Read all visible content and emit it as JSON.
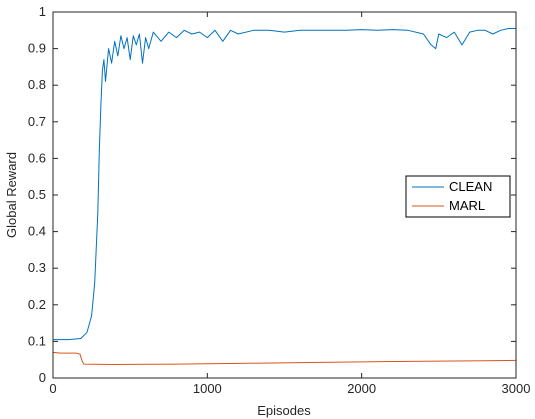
{
  "chart_data": {
    "type": "line",
    "title": "",
    "xlabel": "Episodes",
    "ylabel": "Global Reward",
    "xlim": [
      0,
      3000
    ],
    "ylim": [
      0,
      1
    ],
    "x_ticks": [
      0,
      1000,
      2000,
      3000
    ],
    "y_ticks": [
      0,
      0.1,
      0.2,
      0.3,
      0.4,
      0.5,
      0.6,
      0.7,
      0.8,
      0.9,
      1
    ],
    "x_tick_labels": [
      "0",
      "1000",
      "2000",
      "3000"
    ],
    "y_tick_labels": [
      "0",
      "0.1",
      "0.2",
      "0.3",
      "0.4",
      "0.5",
      "0.6",
      "0.7",
      "0.8",
      "0.9",
      "1"
    ],
    "legend_position": "right",
    "grid": false,
    "series": [
      {
        "name": "CLEAN",
        "color": "#0072BD",
        "x": [
          0,
          100,
          180,
          220,
          250,
          270,
          290,
          300,
          310,
          320,
          330,
          340,
          360,
          380,
          400,
          420,
          440,
          460,
          480,
          500,
          520,
          540,
          560,
          580,
          600,
          620,
          650,
          700,
          750,
          800,
          850,
          900,
          950,
          1000,
          1050,
          1100,
          1150,
          1200,
          1300,
          1400,
          1500,
          1600,
          1700,
          1800,
          1900,
          2000,
          2100,
          2200,
          2300,
          2400,
          2450,
          2480,
          2500,
          2550,
          2600,
          2650,
          2700,
          2750,
          2800,
          2850,
          2900,
          2950,
          3000
        ],
        "y": [
          0.105,
          0.105,
          0.108,
          0.125,
          0.17,
          0.26,
          0.45,
          0.62,
          0.74,
          0.84,
          0.87,
          0.81,
          0.9,
          0.86,
          0.92,
          0.88,
          0.935,
          0.9,
          0.93,
          0.87,
          0.935,
          0.91,
          0.94,
          0.86,
          0.93,
          0.9,
          0.945,
          0.92,
          0.945,
          0.93,
          0.95,
          0.94,
          0.945,
          0.93,
          0.95,
          0.92,
          0.95,
          0.94,
          0.95,
          0.95,
          0.945,
          0.95,
          0.95,
          0.95,
          0.95,
          0.952,
          0.95,
          0.952,
          0.95,
          0.94,
          0.91,
          0.9,
          0.94,
          0.93,
          0.945,
          0.91,
          0.945,
          0.95,
          0.95,
          0.94,
          0.95,
          0.955,
          0.955
        ]
      },
      {
        "name": "MARL",
        "color": "#D95319",
        "x": [
          0,
          50,
          150,
          175,
          190,
          200,
          400,
          800,
          1200,
          1600,
          2000,
          2400,
          2800,
          3000
        ],
        "y": [
          0.07,
          0.068,
          0.068,
          0.065,
          0.045,
          0.038,
          0.037,
          0.038,
          0.04,
          0.042,
          0.044,
          0.046,
          0.047,
          0.048
        ]
      }
    ]
  }
}
